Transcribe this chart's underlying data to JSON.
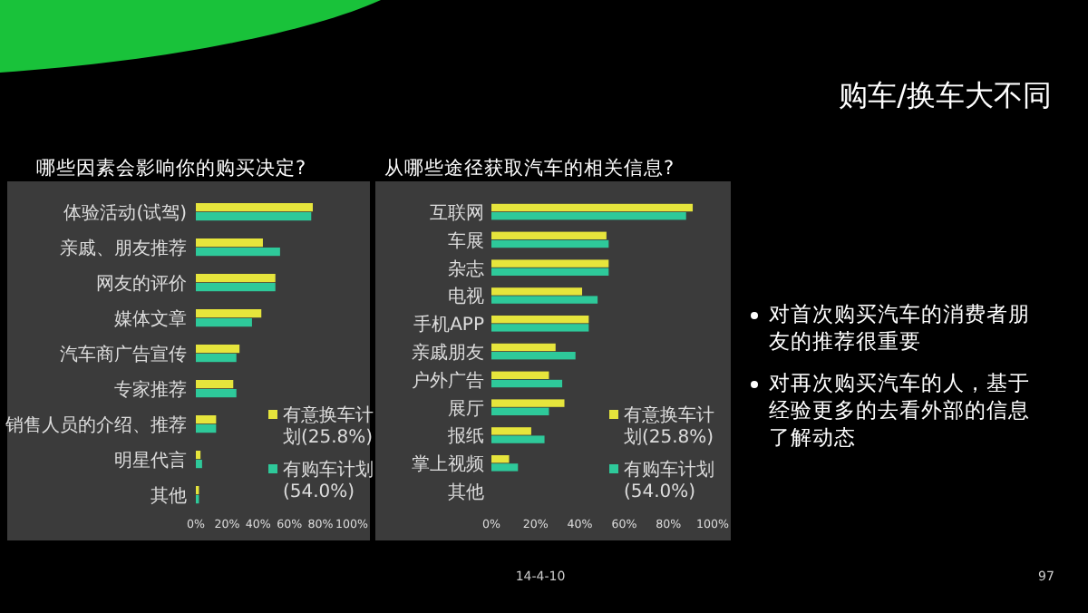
{
  "chart_data": [
    {
      "type": "bar",
      "orientation": "horizontal",
      "title": "哪些因素会影响你的购买决定?",
      "categories": [
        "体验活动(试驾)",
        "亲戚、朋友推荐",
        "网友的评价",
        "媒体文章",
        "汽车商广告宣传",
        "专家推荐",
        "销售人员的介绍、推荐",
        "明星代言",
        "其他"
      ],
      "series": [
        {
          "name": "有意换车计划(25.8%)",
          "color": "#e6e53c",
          "values": [
            75,
            43,
            51,
            42,
            28,
            24,
            13,
            3,
            2
          ]
        },
        {
          "name": "有购车计划(54.0%)",
          "color": "#2ec99a",
          "values": [
            74,
            54,
            51,
            36,
            26,
            26,
            13,
            4,
            2
          ]
        }
      ],
      "xlim": [
        0,
        100
      ],
      "xticks": [
        {
          "value": 0,
          "label": "0%"
        },
        {
          "value": 20,
          "label": "20%"
        },
        {
          "value": 40,
          "label": "40%"
        },
        {
          "value": 60,
          "label": "60%"
        },
        {
          "value": 80,
          "label": "80%"
        },
        {
          "value": 100,
          "label": "100%"
        }
      ],
      "legend": "bottom right",
      "grid": false
    },
    {
      "type": "bar",
      "orientation": "horizontal",
      "title": "从哪些途径获取汽车的相关信息?",
      "categories": [
        "互联网",
        "车展",
        "杂志",
        "电视",
        "手机APP",
        "亲戚朋友",
        "户外广告",
        "展厅",
        "报纸",
        "掌上视频",
        "其他"
      ],
      "series": [
        {
          "name": "有意换车计划(25.8%)",
          "color": "#e6e53c",
          "values": [
            91,
            52,
            53,
            41,
            44,
            29,
            26,
            33,
            18,
            8,
            0
          ]
        },
        {
          "name": "有购车计划(54.0%)",
          "color": "#2ec99a",
          "values": [
            88,
            53,
            53,
            48,
            44,
            38,
            32,
            26,
            24,
            12,
            0
          ]
        }
      ],
      "xlim": [
        0,
        100
      ],
      "xticks": [
        {
          "value": 0,
          "label": "0%"
        },
        {
          "value": 20,
          "label": "20%"
        },
        {
          "value": 40,
          "label": "40%"
        },
        {
          "value": 60,
          "label": "60%"
        },
        {
          "value": 80,
          "label": "80%"
        },
        {
          "value": 100,
          "label": "100%"
        }
      ],
      "legend": "bottom right",
      "grid": false
    },
    {
      "type": "other",
      "title": "购车/换车大不同",
      "annotations": [
        "对首次购买汽车的消费者朋友的推荐很重要",
        "对再次购买汽车的人，基于经验更多的去看外部的信息了解动态",
        "14-4-10",
        "97"
      ]
    }
  ]
}
